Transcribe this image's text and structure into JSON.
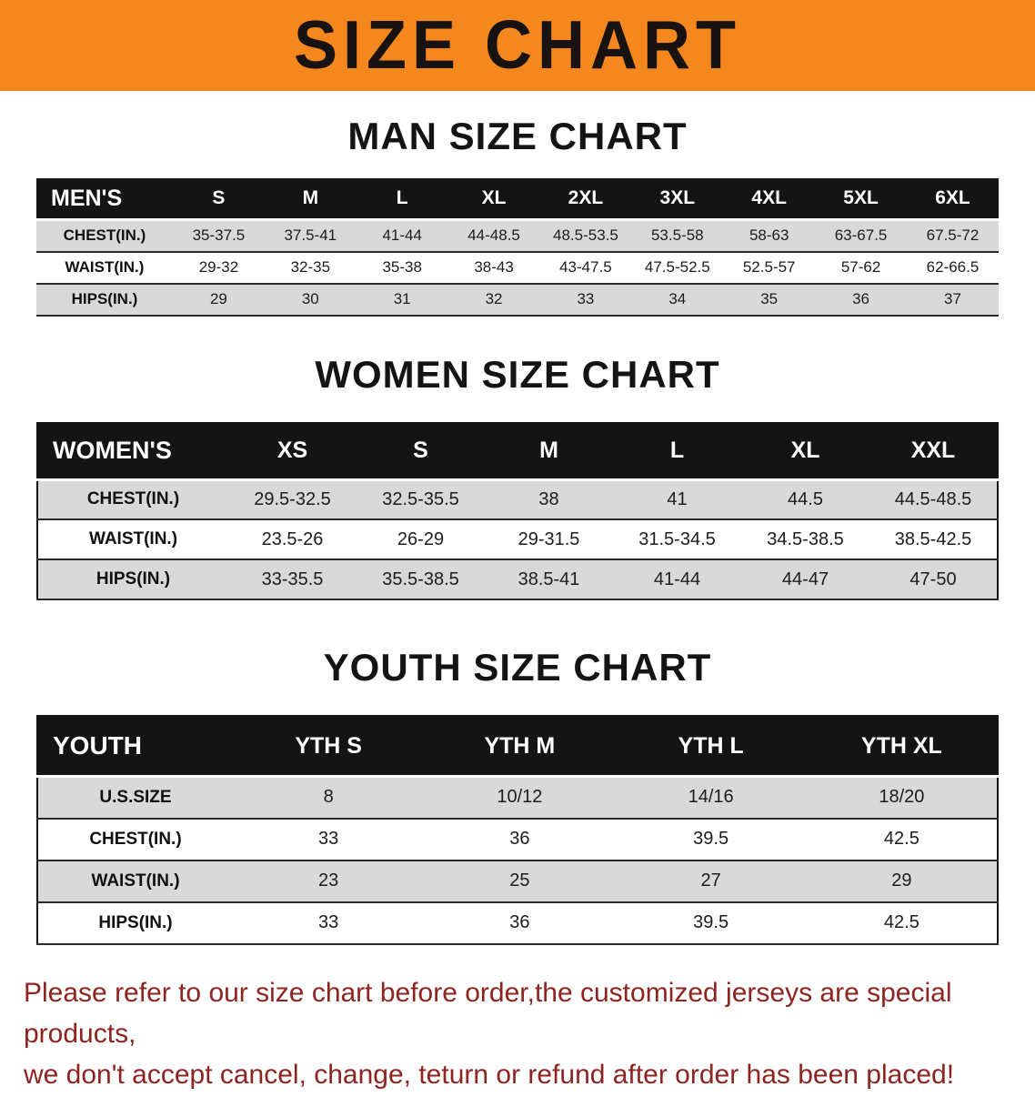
{
  "banner": {
    "title": "SIZE CHART"
  },
  "colors": {
    "banner_bg": "#f5871f",
    "table_header_bg": "#141414",
    "row_stripe": "#d9d9d9",
    "disclaimer_text": "#8e2420"
  },
  "sections": [
    {
      "heading": "MAN SIZE CHART",
      "table": {
        "header": [
          "MEN'S",
          "S",
          "M",
          "L",
          "XL",
          "2XL",
          "3XL",
          "4XL",
          "5XL",
          "6XL"
        ],
        "rows": [
          [
            "CHEST(IN.)",
            "35-37.5",
            "37.5-41",
            "41-44",
            "44-48.5",
            "48.5-53.5",
            "53.5-58",
            "58-63",
            "63-67.5",
            "67.5-72"
          ],
          [
            "WAIST(IN.)",
            "29-32",
            "32-35",
            "35-38",
            "38-43",
            "43-47.5",
            "47.5-52.5",
            "52.5-57",
            "57-62",
            "62-66.5"
          ],
          [
            "HIPS(IN.)",
            "29",
            "30",
            "31",
            "32",
            "33",
            "34",
            "35",
            "36",
            "37"
          ]
        ]
      }
    },
    {
      "heading": "WOMEN SIZE CHART",
      "table": {
        "header": [
          "WOMEN'S",
          "XS",
          "S",
          "M",
          "L",
          "XL",
          "XXL"
        ],
        "rows": [
          [
            "CHEST(IN.)",
            "29.5-32.5",
            "32.5-35.5",
            "38",
            "41",
            "44.5",
            "44.5-48.5"
          ],
          [
            "WAIST(IN.)",
            "23.5-26",
            "26-29",
            "29-31.5",
            "31.5-34.5",
            "34.5-38.5",
            "38.5-42.5"
          ],
          [
            "HIPS(IN.)",
            "33-35.5",
            "35.5-38.5",
            "38.5-41",
            "41-44",
            "44-47",
            "47-50"
          ]
        ]
      }
    },
    {
      "heading": "YOUTH SIZE CHART",
      "table": {
        "header": [
          "YOUTH",
          "YTH S",
          "YTH M",
          "YTH L",
          "YTH XL"
        ],
        "rows": [
          [
            "U.S.SIZE",
            "8",
            "10/12",
            "14/16",
            "18/20"
          ],
          [
            "CHEST(IN.)",
            "33",
            "36",
            "39.5",
            "42.5"
          ],
          [
            "WAIST(IN.)",
            "23",
            "25",
            "27",
            "29"
          ],
          [
            "HIPS(IN.)",
            "33",
            "36",
            "39.5",
            "42.5"
          ]
        ]
      }
    }
  ],
  "footer": {
    "line1": "Please refer to our size chart before order,the customized jerseys are special products,",
    "line2": "we don't accept cancel, change, teturn or refund after order has been placed!"
  }
}
